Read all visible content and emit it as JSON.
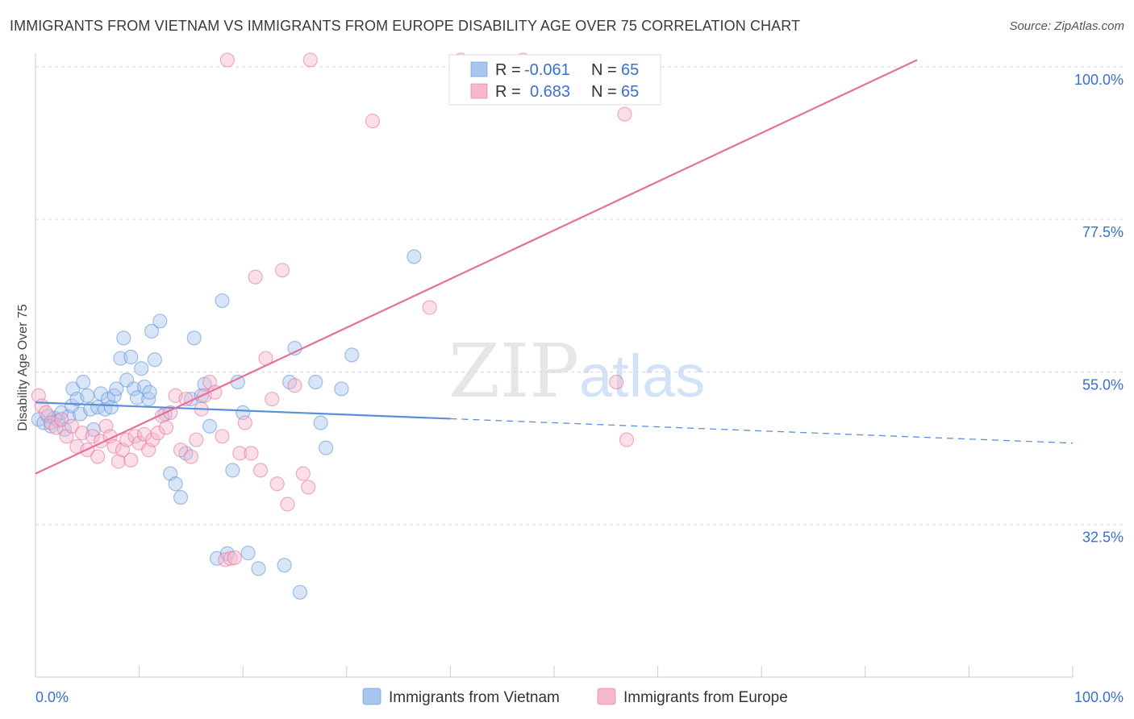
{
  "title": "IMMIGRANTS FROM VIETNAM VS IMMIGRANTS FROM EUROPE DISABILITY AGE OVER 75 CORRELATION CHART",
  "source": "Source: ZipAtlas.com",
  "watermark": {
    "zip": "ZIP",
    "atlas": "atlas"
  },
  "colors": {
    "vietnam": "#5b8fd8",
    "vietnam_fill": "#a9c6ee",
    "europe": "#e5709a",
    "europe_fill": "#f5b8cc",
    "value_text": "#3b6fcc",
    "grid": "#d8d8d8"
  },
  "legend_top": {
    "rows": [
      {
        "r_label": "R =",
        "r_value": "-0.061",
        "n_label": "N =",
        "n_value": "65"
      },
      {
        "r_label": "R =",
        "r_value": "0.683",
        "n_label": "N =",
        "n_value": "65"
      }
    ]
  },
  "legend_bottom": {
    "vietnam": "Immigrants from Vietnam",
    "europe": "Immigrants from Europe"
  },
  "chart_data": {
    "type": "scatter",
    "title": "IMMIGRANTS FROM VIETNAM VS IMMIGRANTS FROM EUROPE DISABILITY AGE OVER 75 CORRELATION CHART",
    "xlabel": "",
    "ylabel": "Disability Age Over 75",
    "x_tick_labels": [
      "0.0%",
      "100.0%"
    ],
    "y_tick_labels": [
      "100.0%",
      "77.5%",
      "55.0%",
      "32.5%"
    ],
    "y_ticks": [
      100.0,
      77.5,
      55.0,
      32.5
    ],
    "xlim": [
      0,
      100
    ],
    "ylim": [
      10,
      102
    ],
    "grid": true,
    "legend": "top-center",
    "series": [
      {
        "name": "Immigrants from Vietnam",
        "r": -0.061,
        "n": 65,
        "trend": {
          "x": [
            0,
            100
          ],
          "y": [
            50.5,
            44.5
          ],
          "solid_until_x": 40
        },
        "points": [
          [
            0.3,
            48.0
          ],
          [
            0.8,
            47.5
          ],
          [
            1.2,
            48.5
          ],
          [
            1.5,
            47.0
          ],
          [
            1.8,
            48.2
          ],
          [
            2.2,
            47.8
          ],
          [
            2.5,
            49.0
          ],
          [
            2.8,
            46.5
          ],
          [
            3.2,
            48.4
          ],
          [
            3.5,
            50.0
          ],
          [
            3.6,
            52.5
          ],
          [
            4.0,
            51.0
          ],
          [
            4.3,
            48.8
          ],
          [
            4.6,
            53.5
          ],
          [
            5.0,
            51.5
          ],
          [
            5.3,
            49.5
          ],
          [
            5.6,
            46.5
          ],
          [
            6.0,
            49.8
          ],
          [
            6.3,
            51.8
          ],
          [
            6.7,
            49.5
          ],
          [
            7.0,
            51.0
          ],
          [
            7.3,
            49.8
          ],
          [
            7.6,
            51.5
          ],
          [
            7.8,
            52.5
          ],
          [
            8.2,
            57.0
          ],
          [
            8.5,
            60.0
          ],
          [
            8.8,
            53.8
          ],
          [
            9.2,
            57.2
          ],
          [
            9.5,
            52.5
          ],
          [
            9.8,
            51.2
          ],
          [
            10.2,
            55.5
          ],
          [
            10.5,
            52.8
          ],
          [
            10.9,
            51.0
          ],
          [
            11.2,
            61.0
          ],
          [
            11.5,
            56.8
          ],
          [
            12.0,
            62.5
          ],
          [
            11.0,
            52.0
          ],
          [
            12.5,
            48.8
          ],
          [
            13.0,
            40.0
          ],
          [
            13.5,
            38.5
          ],
          [
            14.0,
            36.5
          ],
          [
            14.5,
            43.0
          ],
          [
            15.0,
            51.0
          ],
          [
            15.3,
            60.0
          ],
          [
            16.0,
            51.5
          ],
          [
            16.3,
            53.2
          ],
          [
            16.8,
            47.0
          ],
          [
            17.5,
            27.5
          ],
          [
            18.0,
            65.5
          ],
          [
            18.5,
            28.2
          ],
          [
            19.0,
            40.5
          ],
          [
            19.5,
            53.5
          ],
          [
            20.0,
            49.0
          ],
          [
            20.5,
            28.3
          ],
          [
            21.5,
            26.0
          ],
          [
            24.0,
            26.5
          ],
          [
            24.5,
            53.5
          ],
          [
            25.0,
            58.5
          ],
          [
            25.5,
            22.5
          ],
          [
            27.0,
            53.5
          ],
          [
            27.5,
            47.5
          ],
          [
            28.0,
            43.8
          ],
          [
            29.5,
            52.5
          ],
          [
            30.5,
            57.5
          ],
          [
            36.5,
            72.0
          ]
        ]
      },
      {
        "name": "Immigrants from Europe",
        "r": 0.683,
        "n": 65,
        "trend": {
          "x": [
            0,
            85
          ],
          "y": [
            40.0,
            101.0
          ]
        },
        "points": [
          [
            0.3,
            51.5
          ],
          [
            0.6,
            50.0
          ],
          [
            1.0,
            49.0
          ],
          [
            1.5,
            47.5
          ],
          [
            2.0,
            46.8
          ],
          [
            2.5,
            48.0
          ],
          [
            3.0,
            45.5
          ],
          [
            3.5,
            47.0
          ],
          [
            4.0,
            44.0
          ],
          [
            4.5,
            46.0
          ],
          [
            5.0,
            43.5
          ],
          [
            5.5,
            45.5
          ],
          [
            6.0,
            42.5
          ],
          [
            6.3,
            44.8
          ],
          [
            6.8,
            47.0
          ],
          [
            7.2,
            45.5
          ],
          [
            7.6,
            44.0
          ],
          [
            8.0,
            41.8
          ],
          [
            8.4,
            43.5
          ],
          [
            8.8,
            45.0
          ],
          [
            9.2,
            42.0
          ],
          [
            9.6,
            45.5
          ],
          [
            10.0,
            44.5
          ],
          [
            10.5,
            45.8
          ],
          [
            10.9,
            43.5
          ],
          [
            11.3,
            45.0
          ],
          [
            11.8,
            46.0
          ],
          [
            12.2,
            48.5
          ],
          [
            12.6,
            46.8
          ],
          [
            13.0,
            49.0
          ],
          [
            13.5,
            51.5
          ],
          [
            14.0,
            43.5
          ],
          [
            14.5,
            51.0
          ],
          [
            15.0,
            42.5
          ],
          [
            15.5,
            45.0
          ],
          [
            16.0,
            49.5
          ],
          [
            16.3,
            51.5
          ],
          [
            16.8,
            53.5
          ],
          [
            17.3,
            52.0
          ],
          [
            18.0,
            45.5
          ],
          [
            18.3,
            27.3
          ],
          [
            18.8,
            27.5
          ],
          [
            19.2,
            27.6
          ],
          [
            19.7,
            43.0
          ],
          [
            20.2,
            47.5
          ],
          [
            20.8,
            43.0
          ],
          [
            21.2,
            69.0
          ],
          [
            21.7,
            40.5
          ],
          [
            22.2,
            57.0
          ],
          [
            22.8,
            51.0
          ],
          [
            23.3,
            38.5
          ],
          [
            23.8,
            70.0
          ],
          [
            24.3,
            35.5
          ],
          [
            25.0,
            53.0
          ],
          [
            25.8,
            40.0
          ],
          [
            26.3,
            38.0
          ],
          [
            26.5,
            101.0
          ],
          [
            18.5,
            101.0
          ],
          [
            32.5,
            92.0
          ],
          [
            38.0,
            64.5
          ],
          [
            41.0,
            101.0
          ],
          [
            47.0,
            101.0
          ],
          [
            56.0,
            53.5
          ],
          [
            57.0,
            45.0
          ],
          [
            56.8,
            93.0
          ]
        ]
      }
    ]
  }
}
